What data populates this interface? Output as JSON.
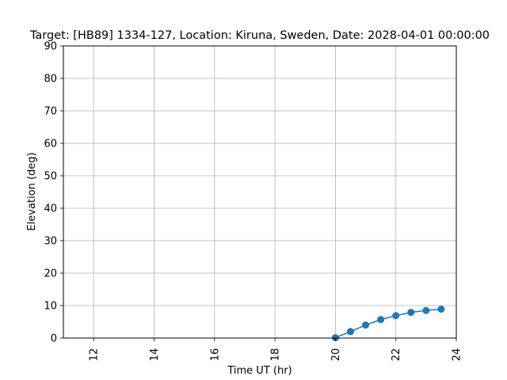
{
  "chart_data": {
    "type": "line",
    "title": "Target: [HB89] 1334-127,  Location: Kiruna, Sweden, Date: 2028-04-01 00:00:00",
    "xlabel": "Time UT (hr)",
    "ylabel": "Elevation (deg)",
    "xlim": [
      11,
      24
    ],
    "ylim": [
      0,
      90
    ],
    "xticks": [
      12,
      14,
      16,
      18,
      20,
      22,
      24
    ],
    "yticks": [
      0,
      10,
      20,
      30,
      40,
      50,
      60,
      70,
      80,
      90
    ],
    "grid": true,
    "marker": "circle",
    "series": [
      {
        "x": [
          20.0,
          20.5,
          21.0,
          21.5,
          22.0,
          22.5,
          23.0,
          23.5
        ],
        "y": [
          0.1,
          2.0,
          4.0,
          5.7,
          6.9,
          7.9,
          8.5,
          8.9
        ],
        "color": "#1f77b4"
      }
    ]
  }
}
